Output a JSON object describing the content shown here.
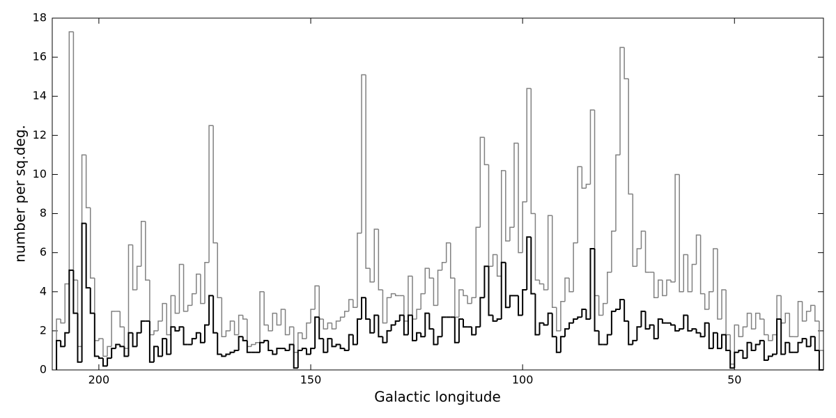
{
  "chart_data": {
    "type": "histogram",
    "xlabel": "Galactic longitude",
    "ylabel": "number per sq.deg.",
    "xlim": [
      211,
      29
    ],
    "xticks": [
      200,
      150,
      100,
      50
    ],
    "ylim": [
      0,
      18
    ],
    "yticks": [
      0,
      2,
      4,
      6,
      8,
      10,
      12,
      14,
      16,
      18
    ],
    "bins": [
      210,
      209,
      208,
      207,
      206,
      205,
      204,
      203,
      202,
      201,
      200,
      199,
      198,
      197,
      196,
      195,
      194,
      193,
      192,
      191,
      190,
      189,
      188,
      187,
      186,
      185,
      184,
      183,
      182,
      181,
      180,
      179,
      178,
      177,
      176,
      175,
      174,
      173,
      172,
      171,
      170,
      169,
      168,
      167,
      166,
      165,
      164,
      163,
      162,
      161,
      160,
      159,
      158,
      157,
      156,
      155,
      154,
      153,
      152,
      151,
      150,
      149,
      148,
      147,
      146,
      145,
      144,
      143,
      142,
      141,
      140,
      139,
      138,
      137,
      136,
      135,
      134,
      133,
      132,
      131,
      130,
      129,
      128,
      127,
      126,
      125,
      124,
      123,
      122,
      121,
      120,
      119,
      118,
      117,
      116,
      115,
      114,
      113,
      112,
      111,
      110,
      109,
      108,
      107,
      106,
      105,
      104,
      103,
      102,
      101,
      100,
      99,
      98,
      97,
      96,
      95,
      94,
      93,
      92,
      91,
      90,
      89,
      88,
      87,
      86,
      85,
      84,
      83,
      82,
      81,
      80,
      79,
      78,
      77,
      76,
      75,
      74,
      73,
      72,
      71,
      70,
      69,
      68,
      67,
      66,
      65,
      64,
      63,
      62,
      61,
      60,
      59,
      58,
      57,
      56,
      55,
      54,
      53,
      52,
      51,
      50,
      49,
      48,
      47,
      46,
      45,
      44,
      43,
      42,
      41,
      40,
      39,
      38,
      37,
      36,
      35,
      34,
      33,
      32,
      31,
      30,
      29
    ],
    "series": [
      {
        "color": "#808080",
        "values": [
          2.6,
          2.4,
          4.4,
          17.3,
          4.6,
          1.2,
          11.0,
          8.3,
          4.7,
          1.5,
          1.6,
          0.7,
          1.2,
          3.0,
          3.0,
          2.2,
          1.1,
          6.4,
          4.1,
          5.3,
          7.6,
          4.6,
          1.8,
          2.0,
          2.5,
          3.4,
          1.8,
          3.8,
          2.9,
          5.4,
          3.0,
          3.3,
          3.9,
          4.9,
          3.4,
          5.5,
          12.5,
          6.5,
          3.7,
          1.7,
          2.0,
          2.5,
          1.8,
          2.8,
          2.6,
          1.2,
          1.3,
          1.4,
          4.0,
          2.3,
          2.0,
          2.9,
          2.3,
          3.1,
          1.8,
          2.2,
          0.9,
          1.9,
          1.6,
          2.4,
          3.1,
          4.3,
          2.6,
          2.1,
          2.4,
          2.1,
          2.5,
          2.7,
          3.0,
          3.6,
          3.2,
          7.0,
          15.1,
          5.2,
          4.5,
          7.2,
          4.1,
          2.4,
          3.7,
          3.9,
          3.8,
          3.8,
          2.5,
          4.8,
          2.6,
          3.1,
          3.9,
          5.2,
          4.7,
          3.3,
          5.1,
          5.5,
          6.5,
          4.7,
          2.7,
          4.1,
          3.8,
          3.4,
          3.7,
          7.3,
          11.9,
          10.5,
          5.3,
          5.9,
          4.8,
          10.2,
          6.6,
          7.3,
          11.6,
          6.0,
          8.6,
          14.4,
          8.0,
          4.6,
          4.4,
          4.1,
          7.9,
          3.2,
          2.0,
          3.5,
          4.7,
          4.0,
          6.5,
          10.4,
          9.3,
          9.5,
          13.3,
          3.8,
          2.8,
          3.4,
          5.0,
          7.1,
          11.0,
          16.5,
          14.9,
          9.0,
          5.3,
          6.2,
          7.1,
          5.0,
          5.0,
          3.7,
          4.6,
          3.8,
          4.6,
          4.5,
          10.0,
          4.0,
          5.9,
          4.0,
          5.4,
          6.9,
          3.9,
          3.1,
          4.0,
          6.2,
          2.6,
          4.1,
          1.8,
          0.3,
          2.3,
          1.7,
          2.2,
          2.9,
          2.1,
          2.9,
          2.6,
          1.8,
          1.5,
          1.8,
          3.8,
          2.4,
          2.9,
          1.7,
          1.7,
          3.5,
          2.5,
          3.0,
          3.3,
          2.5,
          1.0
        ]
      },
      {
        "color": "#000000",
        "values": [
          1.5,
          1.2,
          1.9,
          5.1,
          2.9,
          0.4,
          7.5,
          4.2,
          2.9,
          0.7,
          0.6,
          0.2,
          0.6,
          1.1,
          1.3,
          1.2,
          0.7,
          1.9,
          1.2,
          1.9,
          2.5,
          2.5,
          0.4,
          1.2,
          0.7,
          1.6,
          0.8,
          2.2,
          2.0,
          2.2,
          1.3,
          1.3,
          1.6,
          1.9,
          1.4,
          2.3,
          3.8,
          1.9,
          0.8,
          0.7,
          0.8,
          0.9,
          1.0,
          1.7,
          1.5,
          0.9,
          0.9,
          0.9,
          1.4,
          1.5,
          1.0,
          0.8,
          1.1,
          1.1,
          1.0,
          1.3,
          0.1,
          1.0,
          1.1,
          0.8,
          1.1,
          2.7,
          1.6,
          0.9,
          1.6,
          1.2,
          1.3,
          1.1,
          1.0,
          1.8,
          1.3,
          2.6,
          3.7,
          2.6,
          1.9,
          2.8,
          1.7,
          1.4,
          2.0,
          2.3,
          2.5,
          2.8,
          1.8,
          2.8,
          1.5,
          1.9,
          1.7,
          2.9,
          2.1,
          1.3,
          1.7,
          2.7,
          2.7,
          2.7,
          1.4,
          2.6,
          2.2,
          2.2,
          1.8,
          2.2,
          3.7,
          5.3,
          2.8,
          2.5,
          2.6,
          5.5,
          3.2,
          3.8,
          3.8,
          2.8,
          4.1,
          6.8,
          3.9,
          1.8,
          2.4,
          2.3,
          2.9,
          1.7,
          0.9,
          1.7,
          2.1,
          2.4,
          2.6,
          2.7,
          3.1,
          2.6,
          6.2,
          2.0,
          1.3,
          1.3,
          1.8,
          3.0,
          3.1,
          3.6,
          2.5,
          1.3,
          1.5,
          2.2,
          3.0,
          2.1,
          2.3,
          1.6,
          2.6,
          2.4,
          2.4,
          2.3,
          2.0,
          2.1,
          2.8,
          2.0,
          2.1,
          1.9,
          1.7,
          2.4,
          1.1,
          1.9,
          1.1,
          1.8,
          1.0,
          0.1,
          0.9,
          1.0,
          0.6,
          1.4,
          1.0,
          1.3,
          1.5,
          0.5,
          0.7,
          0.8,
          2.6,
          0.8,
          1.4,
          0.9,
          0.9,
          1.4,
          1.6,
          1.2,
          1.7,
          1.0,
          0
        ]
      }
    ]
  }
}
